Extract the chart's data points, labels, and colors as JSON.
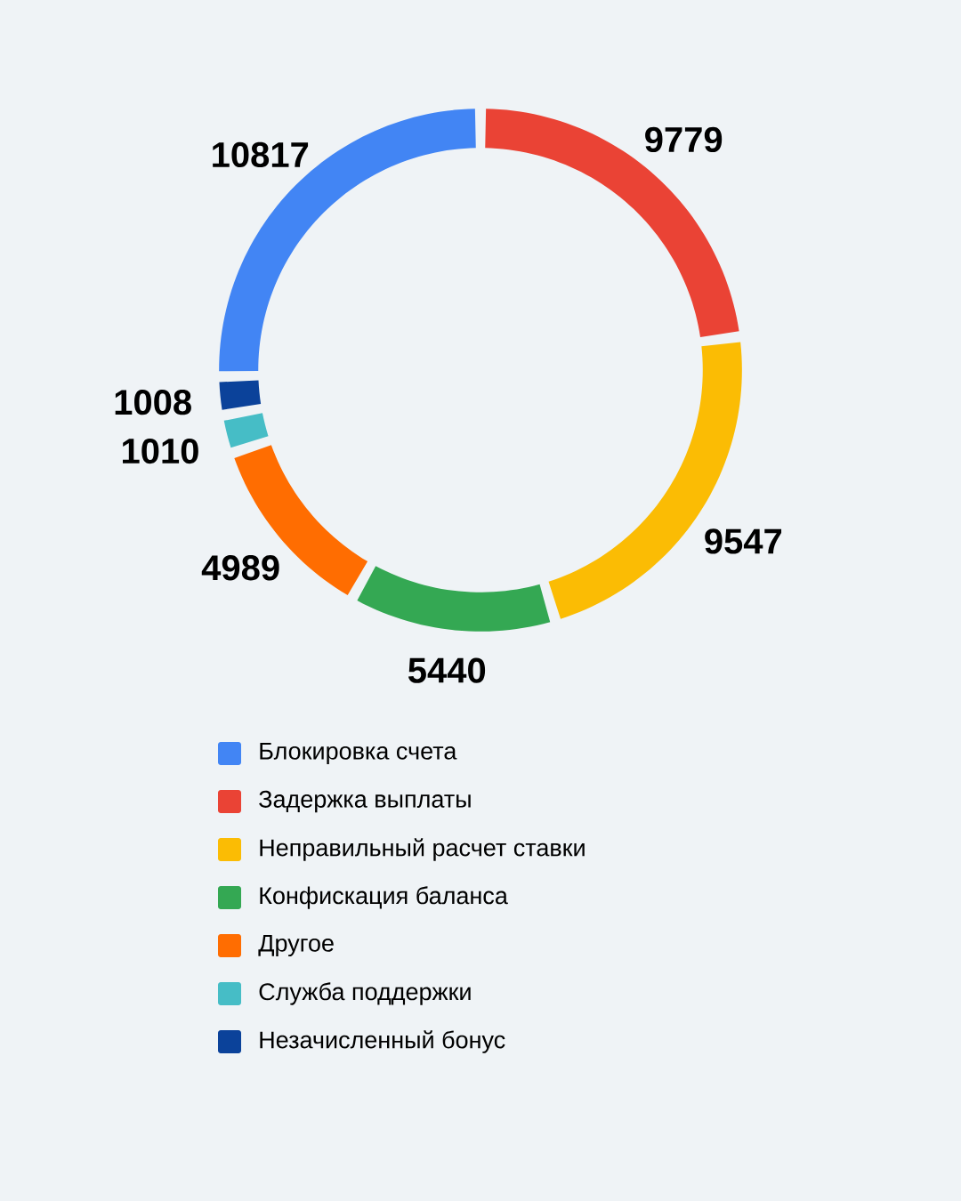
{
  "chart_data": {
    "type": "donut",
    "categories": [
      "Блокировка счета",
      "Задержка выплаты",
      "Неправильный расчет ставки",
      "Конфискация баланса",
      "Другое",
      "Служба поддержки",
      "Незачисленный бонус"
    ],
    "values": [
      10817,
      9779,
      9547,
      5440,
      4989,
      1010,
      1008
    ],
    "colors": [
      "#4285f4",
      "#ea4335",
      "#fbbc04",
      "#34a853",
      "#ff6d01",
      "#46bdc6",
      "#0b429a"
    ],
    "data_labels": true,
    "legend": "bottom"
  }
}
